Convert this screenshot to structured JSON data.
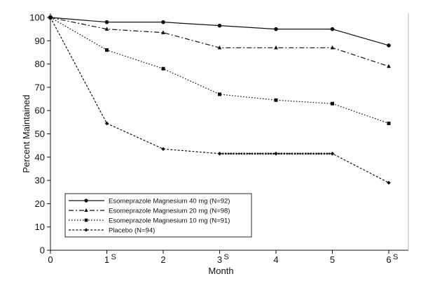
{
  "chart_data": {
    "type": "line",
    "title": "",
    "xlabel": "Month",
    "ylabel": "Percent Maintained",
    "x": [
      0,
      1,
      2,
      3,
      4,
      5,
      6
    ],
    "x_tick_labels": [
      "0",
      "1",
      "2",
      "3",
      "4",
      "5",
      "6"
    ],
    "xlim": [
      0,
      6
    ],
    "ylim": [
      0,
      100
    ],
    "y_ticks": [
      0,
      10,
      20,
      30,
      40,
      50,
      60,
      70,
      80,
      90,
      100
    ],
    "significance_mark": "S",
    "significance_at": [
      1,
      3,
      6
    ],
    "grid": false,
    "legend_position": "bottom-left",
    "series": [
      {
        "name": "Esomeprazole Magnesium 40 mg (N=92)",
        "values": [
          100,
          98,
          98,
          96.5,
          95,
          95,
          88
        ],
        "line_style": "solid",
        "marker": "circle"
      },
      {
        "name": "Esomeprazole Magnesium 20 mg (N=98)",
        "values": [
          100,
          95,
          93.5,
          87,
          87,
          87,
          79
        ],
        "line_style": "dash-dot",
        "marker": "triangle"
      },
      {
        "name": "Esomeprazole Magnesium 10 mg (N=91)",
        "values": [
          100,
          86,
          78,
          67,
          64.5,
          63,
          54.5
        ],
        "line_style": "dotted",
        "marker": "square"
      },
      {
        "name": "Placebo (N=94)",
        "values": [
          100,
          54.5,
          43.5,
          41.5,
          41.5,
          41.5,
          29
        ],
        "line_style": "dashed",
        "marker": "diamond"
      }
    ]
  }
}
